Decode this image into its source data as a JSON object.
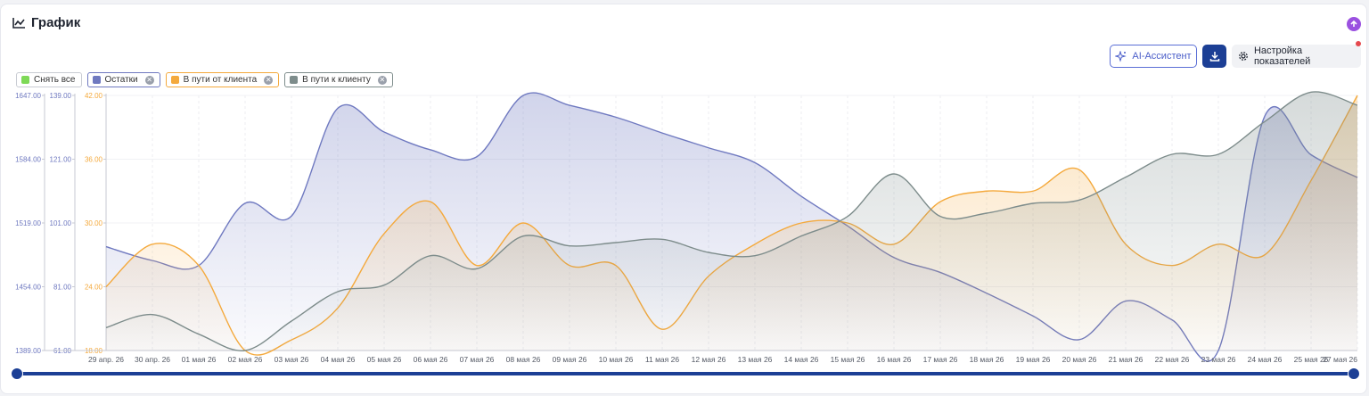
{
  "header": {
    "title": "График"
  },
  "toolbar": {
    "ai_label": "AI-Ассистент",
    "settings_label": "Настройка показателей"
  },
  "legend": {
    "clear_all": "Снять все",
    "items": [
      {
        "label": "Остатки",
        "color": "#6f79c0"
      },
      {
        "label": "В пути от клиента",
        "color": "#f4a93c"
      },
      {
        "label": "В пути к клиенту",
        "color": "#7d8c8b"
      }
    ]
  },
  "colors": {
    "accent": "#1c3f95",
    "ai": "#5b6fd6",
    "purple": "#9b51e0",
    "clear_all": "#7ed957"
  },
  "chart_data": {
    "type": "area",
    "x": [
      "29 апр. 26",
      "30 апр. 26",
      "01 мая 26",
      "02 мая 26",
      "03 мая 26",
      "04 мая 26",
      "05 мая 26",
      "06 мая 26",
      "07 мая 26",
      "08 мая 26",
      "09 мая 26",
      "10 мая 26",
      "11 мая 26",
      "12 мая 26",
      "13 мая 26",
      "14 мая 26",
      "15 мая 26",
      "16 мая 26",
      "17 мая 26",
      "18 мая 26",
      "19 мая 26",
      "20 мая 26",
      "21 мая 26",
      "22 мая 26",
      "23 мая 26",
      "24 мая 26",
      "25 мая 26",
      "27 мая 26"
    ],
    "axes": [
      {
        "id": "ostatki",
        "min": 1389,
        "max": 1647,
        "ticks": [
          "1389.00",
          "1454.00",
          "1519.00",
          "1584.00",
          "1647.00"
        ],
        "color": "#6f79c0"
      },
      {
        "id": "mid",
        "min": 61,
        "max": 139,
        "ticks": [
          "61.00",
          "81.00",
          "101.00",
          "121.00",
          "139.00"
        ],
        "color": "#6f79c0"
      },
      {
        "id": "ot_klienta",
        "min": 18,
        "max": 42,
        "ticks": [
          "18.00",
          "24.00",
          "30.00",
          "36.00",
          "42.00"
        ],
        "color": "#f4a93c"
      }
    ],
    "series": [
      {
        "name": "Остатки",
        "axis": "ostatki",
        "color": "#6f79c0",
        "values": [
          1494,
          1480,
          1475,
          1538,
          1525,
          1634,
          1610,
          1592,
          1585,
          1647,
          1637,
          1625,
          1609,
          1594,
          1579,
          1545,
          1515,
          1483,
          1468,
          1447,
          1424,
          1400,
          1439,
          1420,
          1389,
          1626,
          1587,
          1564
        ]
      },
      {
        "name": "В пути от клиента",
        "axis": "ot_klienta",
        "color": "#f4a93c",
        "values": [
          24,
          28,
          26,
          18,
          19,
          22,
          29,
          32,
          26,
          30,
          26,
          26,
          20,
          25,
          28,
          30,
          30,
          28,
          32,
          33,
          33,
          35,
          28,
          26,
          28,
          27,
          34,
          42
        ]
      },
      {
        "name": "В пути к клиенту",
        "axis": "mid",
        "color": "#7d8c8b",
        "values": [
          68,
          72,
          66,
          61,
          70,
          79,
          81,
          90,
          86,
          96,
          93,
          94,
          95,
          91,
          90,
          96,
          102,
          115,
          102,
          103,
          106,
          107,
          114,
          121,
          121,
          131,
          140,
          136
        ]
      }
    ],
    "grid": true,
    "legend": "top-left"
  }
}
